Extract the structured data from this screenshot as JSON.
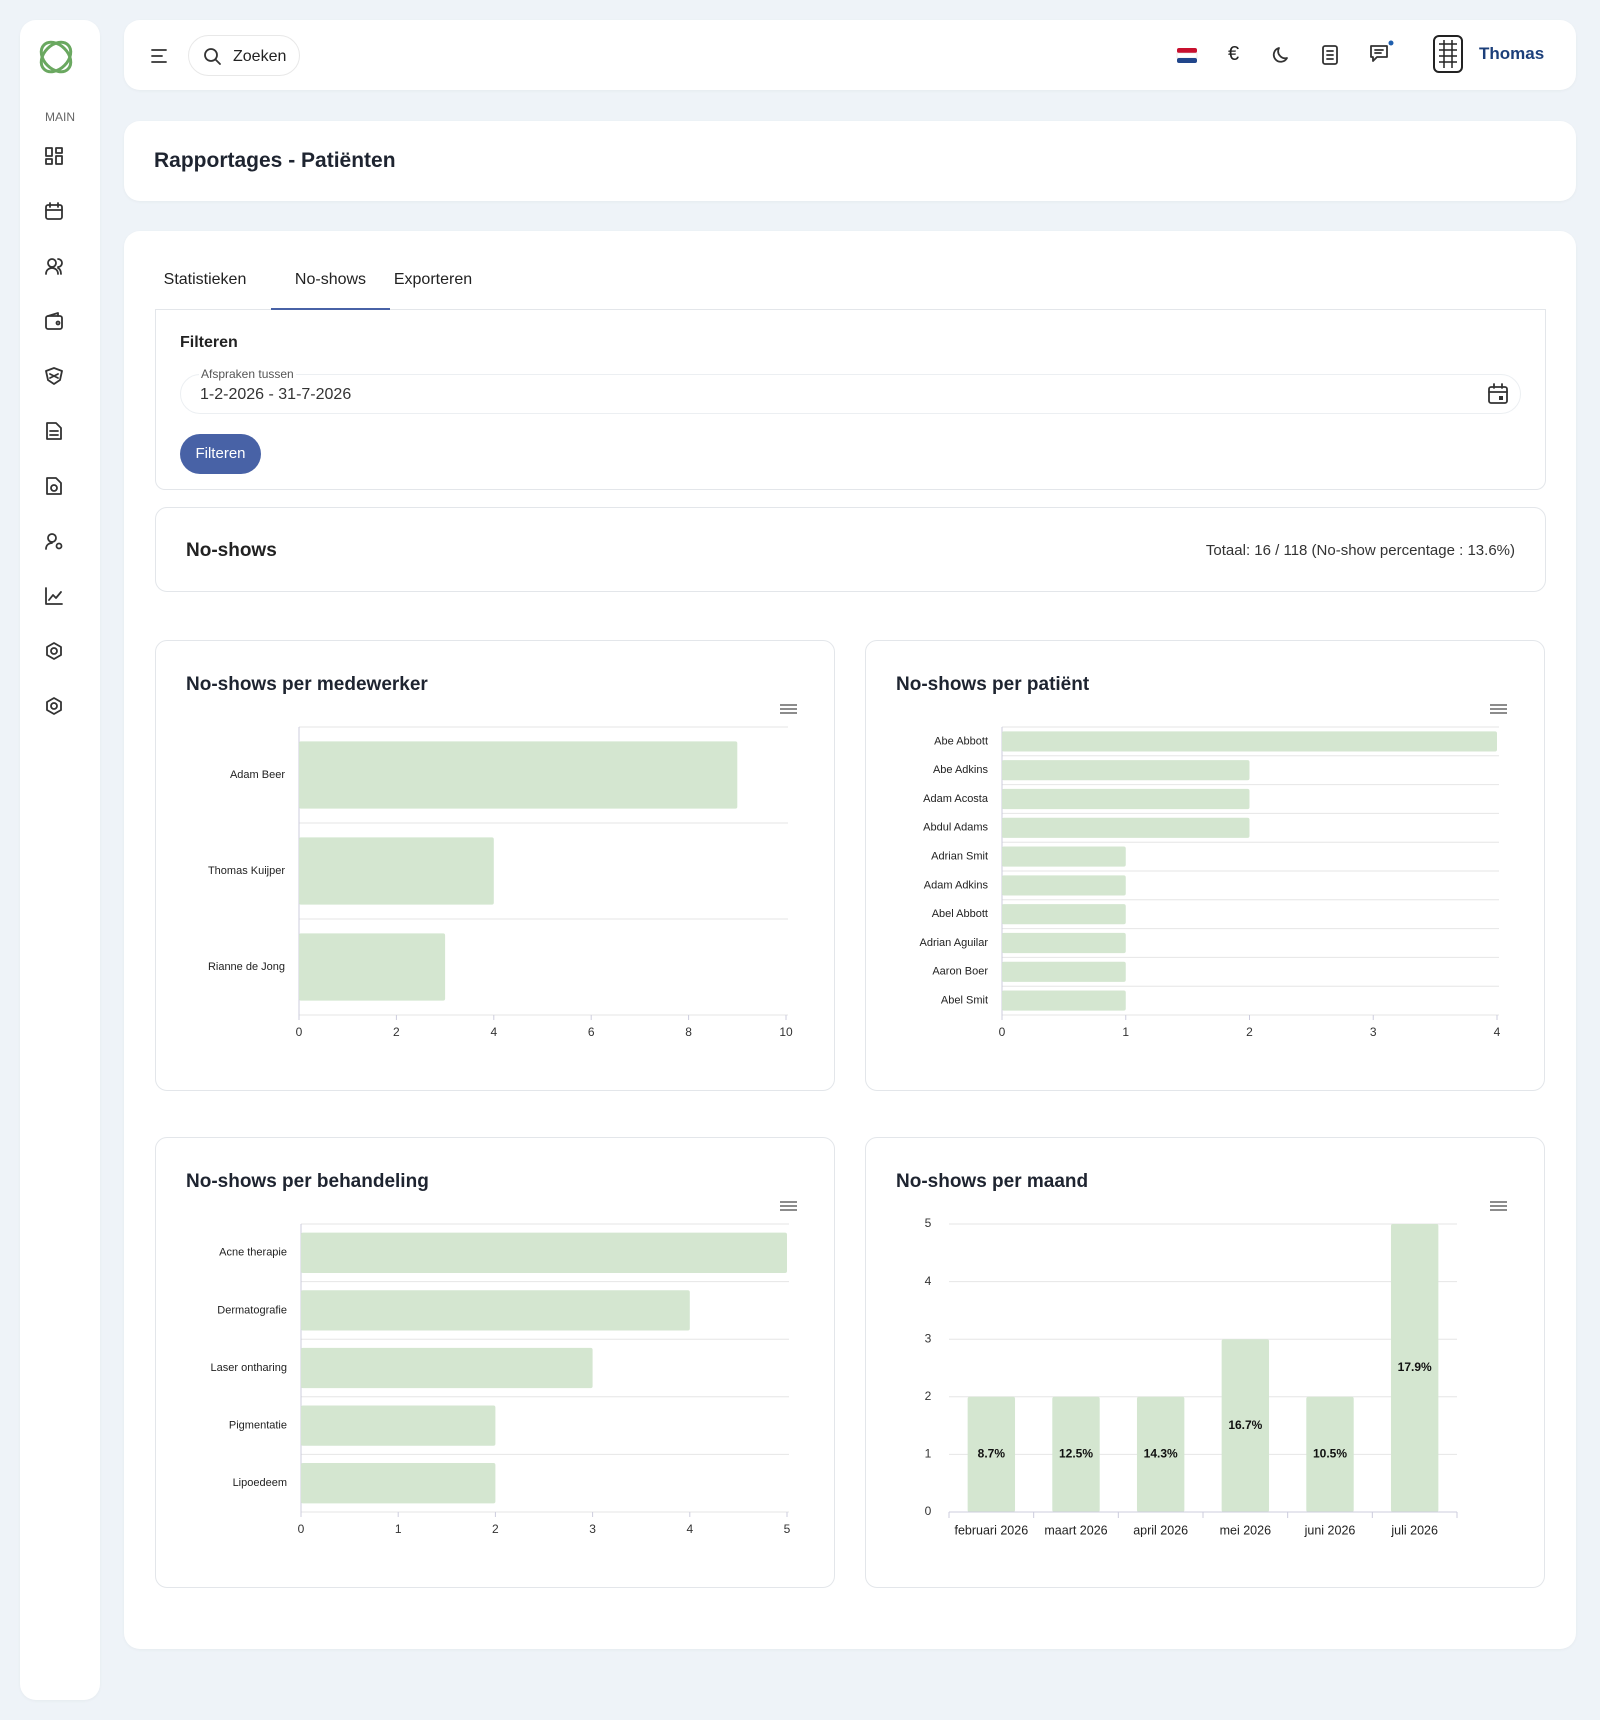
{
  "sidebar": {
    "section_label": "MAIN"
  },
  "header": {
    "search_placeholder": "Zoeken",
    "currency_symbol": "€",
    "user_name": "Thomas"
  },
  "page_title": "Rapportages - Patiënten",
  "tabs": {
    "items": [
      "Statistieken",
      "No-shows",
      "Exporteren"
    ],
    "active": 1
  },
  "filter": {
    "title": "Filteren",
    "field_label": "Afspraken tussen",
    "field_value": "1-2-2026 - 31-7-2026",
    "button": "Filteren"
  },
  "summary": {
    "title": "No-shows",
    "total": "Totaal: 16 / 118 (No-show percentage : 13.6%)"
  },
  "chart_data": [
    {
      "type": "barh",
      "title": "No-shows per medewerker",
      "color": "#d4e6d0",
      "categories": [
        "Adam Beer",
        "Thomas Kuijper",
        "Rianne de Jong"
      ],
      "values": [
        9,
        4,
        3
      ],
      "xlim": [
        0,
        10
      ],
      "xticks": [
        0,
        2,
        4,
        6,
        8,
        10
      ]
    },
    {
      "type": "barh",
      "title": "No-shows per patiënt",
      "color": "#d4e6d0",
      "categories": [
        "Abe Abbott",
        "Abe Adkins",
        "Adam Acosta",
        "Abdul Adams",
        "Adrian Smit",
        "Adam Adkins",
        "Abel Abbott",
        "Adrian Aguilar",
        "Aaron Boer",
        "Abel Smit"
      ],
      "values": [
        4,
        2,
        2,
        2,
        1,
        1,
        1,
        1,
        1,
        1
      ],
      "xlim": [
        0,
        4
      ],
      "xticks": [
        0,
        1,
        2,
        3,
        4
      ]
    },
    {
      "type": "barh",
      "title": "No-shows per behandeling",
      "color": "#d4e6d0",
      "categories": [
        "Acne therapie",
        "Dermatografie",
        "Laser ontharing",
        "Pigmentatie",
        "Lipoedeem"
      ],
      "values": [
        5,
        4,
        3,
        2,
        2
      ],
      "xlim": [
        0,
        5
      ],
      "xticks": [
        0,
        1,
        2,
        3,
        4,
        5
      ]
    },
    {
      "type": "bar",
      "title": "No-shows per maand",
      "color": "#d4e6d0",
      "categories": [
        "februari 2026",
        "maart 2026",
        "april 2026",
        "mei 2026",
        "juni 2026",
        "juli 2026"
      ],
      "values": [
        2,
        2,
        2,
        3,
        2,
        5
      ],
      "bar_labels": [
        "8.7%",
        "12.5%",
        "14.3%",
        "16.7%",
        "10.5%",
        "17.9%"
      ],
      "ylim": [
        0,
        5
      ],
      "yticks": [
        0,
        1,
        2,
        3,
        4,
        5
      ],
      "grid": true
    }
  ]
}
